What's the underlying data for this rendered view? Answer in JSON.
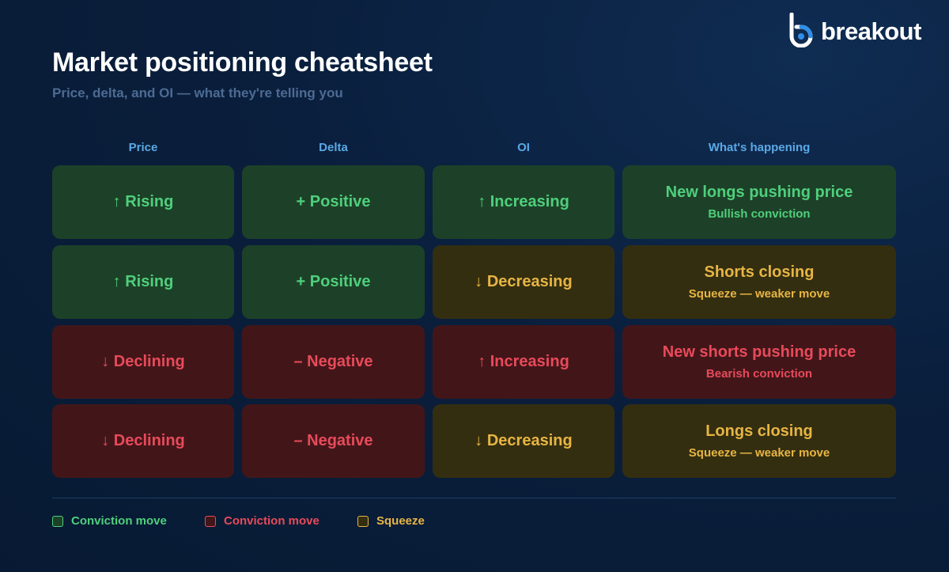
{
  "brand": {
    "name": "breakout",
    "accent": "#2f8fe8"
  },
  "title": "Market positioning cheatsheet",
  "subtitle": "Price, delta, and OI — what they're telling you",
  "headers": {
    "price": "Price",
    "delta": "Delta",
    "oi": "OI",
    "happening": "What's happening"
  },
  "rows": [
    {
      "price": "↑ Rising",
      "price_tone": "green",
      "delta": "+ Positive",
      "delta_tone": "green",
      "oi": "↑ Increasing",
      "oi_tone": "green",
      "happening": "New longs pushing price",
      "note": "Bullish conviction",
      "happening_tone": "green"
    },
    {
      "price": "↑ Rising",
      "price_tone": "green",
      "delta": "+ Positive",
      "delta_tone": "green",
      "oi": "↓ Decreasing",
      "oi_tone": "yellow",
      "happening": "Shorts closing",
      "note": "Squeeze — weaker move",
      "happening_tone": "yellow"
    },
    {
      "price": "↓ Declining",
      "price_tone": "red",
      "delta": "– Negative",
      "delta_tone": "red",
      "oi": "↑ Increasing",
      "oi_tone": "red",
      "happening": "New shorts pushing price",
      "note": "Bearish conviction",
      "happening_tone": "red"
    },
    {
      "price": "↓ Declining",
      "price_tone": "red",
      "delta": "– Negative",
      "delta_tone": "red",
      "oi": "↓ Decreasing",
      "oi_tone": "yellow",
      "happening": "Longs closing",
      "note": "Squeeze — weaker move",
      "happening_tone": "yellow"
    }
  ],
  "legend": [
    {
      "label": "Conviction move",
      "tone": "green"
    },
    {
      "label": "Conviction move",
      "tone": "red"
    },
    {
      "label": "Squeeze",
      "tone": "yellow"
    }
  ],
  "colors": {
    "green_text": "#4fcf7c",
    "green_bg": "#1d4128",
    "red_text": "#e84a5a",
    "red_bg": "#421619",
    "yellow_text": "#e7b544",
    "yellow_bg": "#342e10",
    "header_text": "#5aa9e6"
  }
}
